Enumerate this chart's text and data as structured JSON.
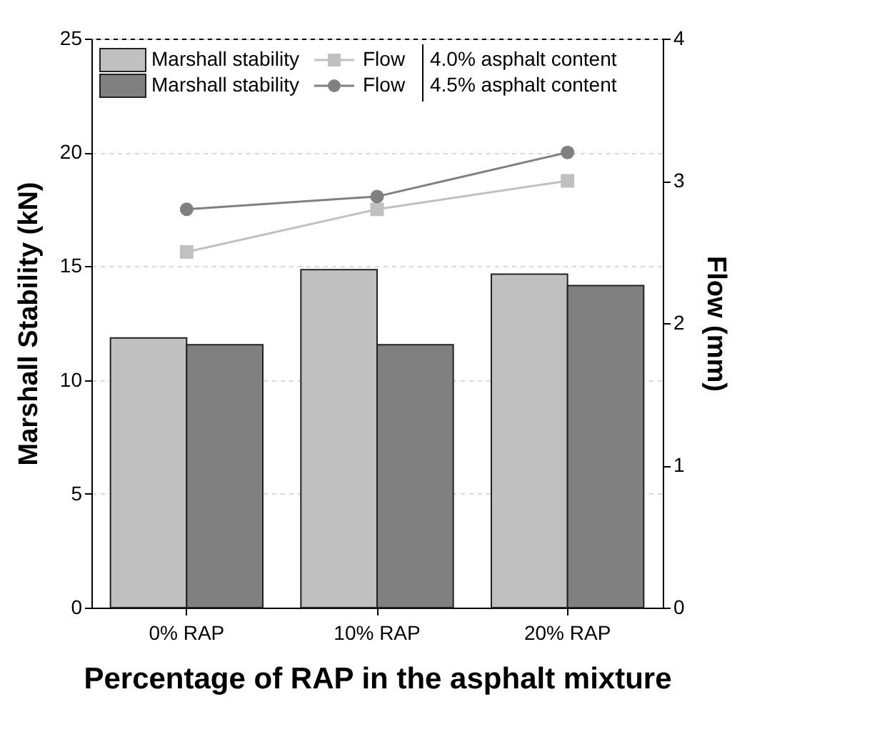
{
  "chart_data": {
    "type": "bar",
    "xlabel": "Percentage of RAP in the asphalt mixture",
    "ylabel": "Marshall Stability (kN)",
    "y2label": "Flow (mm)",
    "categories": [
      "0% RAP",
      "10% RAP",
      "20% RAP"
    ],
    "series": [
      {
        "name": "Marshall stability",
        "color": "#c0c0c0",
        "values": [
          11.85,
          14.85,
          14.65
        ]
      },
      {
        "name": "Marshall stability",
        "color": "#808080",
        "values": [
          11.55,
          11.55,
          14.15
        ]
      },
      {
        "name": "Flow",
        "type": "line",
        "axis": "y2",
        "marker": "square",
        "color": "#c0c0c0",
        "values": [
          2.5,
          2.8,
          3.0
        ]
      },
      {
        "name": "Flow",
        "type": "line",
        "axis": "y2",
        "marker": "circle",
        "color": "#808080",
        "values": [
          2.8,
          2.89,
          3.2
        ]
      }
    ],
    "annotations": [
      "4.0% asphalt content",
      "4.5% asphalt content"
    ],
    "ylim": [
      0,
      25
    ],
    "yticks": [
      0,
      5,
      10,
      15,
      20,
      25
    ],
    "y2lim": [
      0,
      4
    ],
    "y2ticks": [
      0,
      1,
      2,
      3,
      4
    ],
    "grid": "y",
    "legend": "top left"
  }
}
